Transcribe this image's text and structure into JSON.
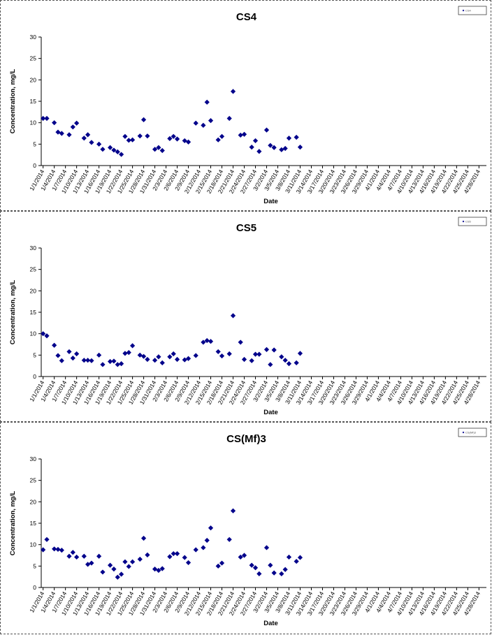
{
  "colors": {
    "marker": "#00008B",
    "axis": "#000000",
    "border": "#555555"
  },
  "chart_data": [
    {
      "type": "scatter",
      "title": "CS4",
      "xlabel": "Date",
      "ylabel": "Concentration, mg/L",
      "ylim": [
        0,
        30
      ],
      "yticks": [
        0,
        5,
        10,
        15,
        20,
        25,
        30
      ],
      "grid": false,
      "legend_position": "top-right",
      "legend_entries": [
        {
          "label": "CS4"
        }
      ],
      "x_tick_labels": [
        "1/1/2014",
        "1/4/2014",
        "1/7/2014",
        "1/10/2014",
        "1/13/2014",
        "1/16/2014",
        "1/19/2014",
        "1/22/2014",
        "1/25/2014",
        "1/28/2014",
        "1/31/2014",
        "2/3/2014",
        "2/6/2014",
        "2/9/2014",
        "2/12/2014",
        "2/15/2014",
        "2/18/2014",
        "2/21/2014",
        "2/24/2014",
        "2/27/2014",
        "3/2/2014",
        "3/5/2014",
        "3/8/2014",
        "3/11/2014",
        "3/14/2014",
        "3/17/2014",
        "3/20/2014",
        "3/23/2014",
        "3/26/2014",
        "3/29/2014",
        "4/1/2014",
        "4/4/2014",
        "4/7/2014",
        "4/10/2014",
        "4/13/2014",
        "4/16/2014",
        "4/19/2014",
        "4/22/2014",
        "4/25/2014",
        "4/28/2014"
      ],
      "points": [
        {
          "x": "1/1/2014",
          "y": 11.0
        },
        {
          "x": "1/2/2014",
          "y": 11.0
        },
        {
          "x": "1/4/2014",
          "y": 10.0
        },
        {
          "x": "1/5/2014",
          "y": 7.8
        },
        {
          "x": "1/6/2014",
          "y": 7.5
        },
        {
          "x": "1/8/2014",
          "y": 7.2
        },
        {
          "x": "1/9/2014",
          "y": 9.0
        },
        {
          "x": "1/10/2014",
          "y": 9.9
        },
        {
          "x": "1/12/2014",
          "y": 6.4
        },
        {
          "x": "1/13/2014",
          "y": 7.2
        },
        {
          "x": "1/14/2014",
          "y": 5.4
        },
        {
          "x": "1/16/2014",
          "y": 5.0
        },
        {
          "x": "1/17/2014",
          "y": 3.8
        },
        {
          "x": "1/19/2014",
          "y": 4.2
        },
        {
          "x": "1/20/2014",
          "y": 3.6
        },
        {
          "x": "1/21/2014",
          "y": 3.2
        },
        {
          "x": "1/22/2014",
          "y": 2.6
        },
        {
          "x": "1/23/2014",
          "y": 6.8
        },
        {
          "x": "1/24/2014",
          "y": 5.9
        },
        {
          "x": "1/25/2014",
          "y": 6.0
        },
        {
          "x": "1/27/2014",
          "y": 6.9
        },
        {
          "x": "1/28/2014",
          "y": 10.7
        },
        {
          "x": "1/29/2014",
          "y": 6.9
        },
        {
          "x": "1/31/2014",
          "y": 3.8
        },
        {
          "x": "2/1/2014",
          "y": 4.2
        },
        {
          "x": "2/2/2014",
          "y": 3.5
        },
        {
          "x": "2/4/2014",
          "y": 6.3
        },
        {
          "x": "2/5/2014",
          "y": 6.8
        },
        {
          "x": "2/6/2014",
          "y": 6.2
        },
        {
          "x": "2/8/2014",
          "y": 5.8
        },
        {
          "x": "2/9/2014",
          "y": 5.5
        },
        {
          "x": "2/11/2014",
          "y": 9.9
        },
        {
          "x": "2/13/2014",
          "y": 9.4
        },
        {
          "x": "2/14/2014",
          "y": 14.8
        },
        {
          "x": "2/15/2014",
          "y": 10.5
        },
        {
          "x": "2/17/2014",
          "y": 6.0
        },
        {
          "x": "2/18/2014",
          "y": 6.8
        },
        {
          "x": "2/20/2014",
          "y": 11.0
        },
        {
          "x": "2/21/2014",
          "y": 17.3
        },
        {
          "x": "2/23/2014",
          "y": 7.1
        },
        {
          "x": "2/24/2014",
          "y": 7.3
        },
        {
          "x": "2/26/2014",
          "y": 4.3
        },
        {
          "x": "2/27/2014",
          "y": 5.8
        },
        {
          "x": "2/28/2014",
          "y": 3.3
        },
        {
          "x": "3/2/2014",
          "y": 8.3
        },
        {
          "x": "3/3/2014",
          "y": 4.7
        },
        {
          "x": "3/4/2014",
          "y": 4.2
        },
        {
          "x": "3/6/2014",
          "y": 3.7
        },
        {
          "x": "3/7/2014",
          "y": 4.0
        },
        {
          "x": "3/8/2014",
          "y": 6.4
        },
        {
          "x": "3/10/2014",
          "y": 6.6
        },
        {
          "x": "3/11/2014",
          "y": 4.3
        }
      ]
    },
    {
      "type": "scatter",
      "title": "CS5",
      "xlabel": "Date",
      "ylabel": "Concentration, mg/L",
      "ylim": [
        0,
        30
      ],
      "yticks": [
        0,
        5,
        10,
        15,
        20,
        25,
        30
      ],
      "grid": false,
      "legend_position": "top-right",
      "legend_entries": [
        {
          "label": "CS5"
        }
      ],
      "x_tick_labels": [
        "1/1/2014",
        "1/4/2014",
        "1/7/2014",
        "1/10/2014",
        "1/13/2014",
        "1/16/2014",
        "1/19/2014",
        "1/22/2014",
        "1/25/2014",
        "1/28/2014",
        "1/31/2014",
        "2/3/2014",
        "2/6/2014",
        "2/9/2014",
        "2/12/2014",
        "2/15/2014",
        "2/18/2014",
        "2/21/2014",
        "2/24/2014",
        "2/27/2014",
        "3/2/2014",
        "3/5/2014",
        "3/8/2014",
        "3/11/2014",
        "3/14/2014",
        "3/17/2014",
        "3/20/2014",
        "3/23/2014",
        "3/26/2014",
        "3/29/2014",
        "4/1/2014",
        "4/4/2014",
        "4/7/2014",
        "4/10/2014",
        "4/13/2014",
        "4/16/2014",
        "4/19/2014",
        "4/22/2014",
        "4/25/2014",
        "4/28/2014"
      ],
      "points": [
        {
          "x": "1/1/2014",
          "y": 10.0
        },
        {
          "x": "1/2/2014",
          "y": 9.5
        },
        {
          "x": "1/4/2014",
          "y": 7.3
        },
        {
          "x": "1/5/2014",
          "y": 4.9
        },
        {
          "x": "1/6/2014",
          "y": 3.7
        },
        {
          "x": "1/8/2014",
          "y": 5.8
        },
        {
          "x": "1/9/2014",
          "y": 4.3
        },
        {
          "x": "1/10/2014",
          "y": 5.3
        },
        {
          "x": "1/12/2014",
          "y": 3.8
        },
        {
          "x": "1/13/2014",
          "y": 3.8
        },
        {
          "x": "1/14/2014",
          "y": 3.7
        },
        {
          "x": "1/16/2014",
          "y": 5.0
        },
        {
          "x": "1/17/2014",
          "y": 2.8
        },
        {
          "x": "1/19/2014",
          "y": 3.5
        },
        {
          "x": "1/20/2014",
          "y": 3.6
        },
        {
          "x": "1/21/2014",
          "y": 2.8
        },
        {
          "x": "1/22/2014",
          "y": 3.0
        },
        {
          "x": "1/23/2014",
          "y": 5.4
        },
        {
          "x": "1/24/2014",
          "y": 5.6
        },
        {
          "x": "1/25/2014",
          "y": 7.2
        },
        {
          "x": "1/27/2014",
          "y": 5.0
        },
        {
          "x": "1/28/2014",
          "y": 4.7
        },
        {
          "x": "1/29/2014",
          "y": 4.0
        },
        {
          "x": "1/31/2014",
          "y": 3.8
        },
        {
          "x": "2/1/2014",
          "y": 4.6
        },
        {
          "x": "2/2/2014",
          "y": 3.2
        },
        {
          "x": "2/4/2014",
          "y": 4.6
        },
        {
          "x": "2/5/2014",
          "y": 5.3
        },
        {
          "x": "2/6/2014",
          "y": 4.0
        },
        {
          "x": "2/8/2014",
          "y": 3.9
        },
        {
          "x": "2/9/2014",
          "y": 4.2
        },
        {
          "x": "2/11/2014",
          "y": 4.9
        },
        {
          "x": "2/13/2014",
          "y": 8.0
        },
        {
          "x": "2/14/2014",
          "y": 8.4
        },
        {
          "x": "2/15/2014",
          "y": 8.2
        },
        {
          "x": "2/17/2014",
          "y": 5.8
        },
        {
          "x": "2/18/2014",
          "y": 4.8
        },
        {
          "x": "2/20/2014",
          "y": 5.3
        },
        {
          "x": "2/21/2014",
          "y": 14.2
        },
        {
          "x": "2/23/2014",
          "y": 8.0
        },
        {
          "x": "2/24/2014",
          "y": 4.0
        },
        {
          "x": "2/26/2014",
          "y": 3.7
        },
        {
          "x": "2/27/2014",
          "y": 5.2
        },
        {
          "x": "2/28/2014",
          "y": 5.2
        },
        {
          "x": "3/2/2014",
          "y": 6.3
        },
        {
          "x": "3/3/2014",
          "y": 2.8
        },
        {
          "x": "3/4/2014",
          "y": 6.2
        },
        {
          "x": "3/6/2014",
          "y": 4.6
        },
        {
          "x": "3/7/2014",
          "y": 3.8
        },
        {
          "x": "3/8/2014",
          "y": 3.0
        },
        {
          "x": "3/10/2014",
          "y": 3.2
        },
        {
          "x": "3/11/2014",
          "y": 5.4
        }
      ]
    },
    {
      "type": "scatter",
      "title": "CS(Mf)3",
      "xlabel": "Date",
      "ylabel": "Concentration, mg/L",
      "ylim": [
        0,
        30
      ],
      "yticks": [
        0,
        5,
        10,
        15,
        20,
        25,
        30
      ],
      "grid": false,
      "legend_position": "top-right",
      "legend_entries": [
        {
          "label": "CS(Mf)3"
        }
      ],
      "x_tick_labels": [
        "1/1/2014",
        "1/4/2014",
        "1/7/2014",
        "1/10/2014",
        "1/13/2014",
        "1/16/2014",
        "1/19/2014",
        "1/22/2014",
        "1/25/2014",
        "1/28/2014",
        "1/31/2014",
        "2/3/2014",
        "2/6/2014",
        "2/9/2014",
        "2/12/2014",
        "2/15/2014",
        "2/18/2014",
        "2/21/2014",
        "2/24/2014",
        "2/27/2014",
        "3/2/2014",
        "3/5/2014",
        "3/8/2014",
        "3/11/2014",
        "3/14/2014",
        "3/17/2014",
        "3/20/2014",
        "3/23/2014",
        "3/26/2014",
        "3/29/2014",
        "4/1/2014",
        "4/4/2014",
        "4/7/2014",
        "4/10/2014",
        "4/13/2014",
        "4/16/2014",
        "4/19/2014",
        "4/22/2014",
        "4/25/2014",
        "4/28/2014"
      ],
      "points": [
        {
          "x": "1/1/2014",
          "y": 8.8
        },
        {
          "x": "1/2/2014",
          "y": 11.2
        },
        {
          "x": "1/4/2014",
          "y": 9.0
        },
        {
          "x": "1/5/2014",
          "y": 8.9
        },
        {
          "x": "1/6/2014",
          "y": 8.7
        },
        {
          "x": "1/8/2014",
          "y": 7.3
        },
        {
          "x": "1/9/2014",
          "y": 8.2
        },
        {
          "x": "1/10/2014",
          "y": 7.1
        },
        {
          "x": "1/12/2014",
          "y": 7.3
        },
        {
          "x": "1/13/2014",
          "y": 5.4
        },
        {
          "x": "1/14/2014",
          "y": 5.7
        },
        {
          "x": "1/16/2014",
          "y": 7.3
        },
        {
          "x": "1/17/2014",
          "y": 3.6
        },
        {
          "x": "1/19/2014",
          "y": 5.2
        },
        {
          "x": "1/20/2014",
          "y": 4.3
        },
        {
          "x": "1/21/2014",
          "y": 2.4
        },
        {
          "x": "1/22/2014",
          "y": 3.1
        },
        {
          "x": "1/23/2014",
          "y": 6.0
        },
        {
          "x": "1/24/2014",
          "y": 4.9
        },
        {
          "x": "1/25/2014",
          "y": 6.0
        },
        {
          "x": "1/27/2014",
          "y": 6.6
        },
        {
          "x": "1/28/2014",
          "y": 11.5
        },
        {
          "x": "1/29/2014",
          "y": 7.6
        },
        {
          "x": "1/31/2014",
          "y": 4.3
        },
        {
          "x": "2/1/2014",
          "y": 4.0
        },
        {
          "x": "2/2/2014",
          "y": 4.4
        },
        {
          "x": "2/4/2014",
          "y": 7.2
        },
        {
          "x": "2/5/2014",
          "y": 7.9
        },
        {
          "x": "2/6/2014",
          "y": 7.9
        },
        {
          "x": "2/8/2014",
          "y": 7.0
        },
        {
          "x": "2/9/2014",
          "y": 5.8
        },
        {
          "x": "2/11/2014",
          "y": 8.8
        },
        {
          "x": "2/13/2014",
          "y": 9.3
        },
        {
          "x": "2/14/2014",
          "y": 11.0
        },
        {
          "x": "2/15/2014",
          "y": 13.9
        },
        {
          "x": "2/17/2014",
          "y": 5.0
        },
        {
          "x": "2/18/2014",
          "y": 5.7
        },
        {
          "x": "2/20/2014",
          "y": 11.2
        },
        {
          "x": "2/21/2014",
          "y": 17.9
        },
        {
          "x": "2/23/2014",
          "y": 7.1
        },
        {
          "x": "2/24/2014",
          "y": 7.5
        },
        {
          "x": "2/26/2014",
          "y": 5.2
        },
        {
          "x": "2/27/2014",
          "y": 4.6
        },
        {
          "x": "2/28/2014",
          "y": 3.2
        },
        {
          "x": "3/2/2014",
          "y": 9.3
        },
        {
          "x": "3/3/2014",
          "y": 5.2
        },
        {
          "x": "3/4/2014",
          "y": 3.4
        },
        {
          "x": "3/6/2014",
          "y": 3.2
        },
        {
          "x": "3/7/2014",
          "y": 4.2
        },
        {
          "x": "3/8/2014",
          "y": 7.1
        },
        {
          "x": "3/10/2014",
          "y": 6.1
        },
        {
          "x": "3/11/2014",
          "y": 7.0
        }
      ]
    }
  ]
}
